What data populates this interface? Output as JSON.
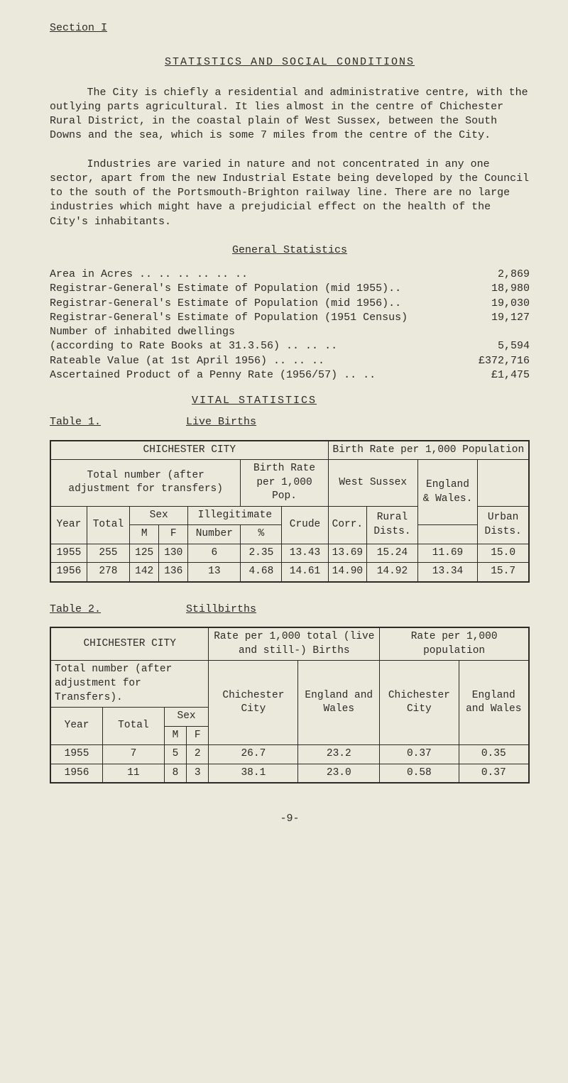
{
  "section_label": "Section I",
  "title": "STATISTICS  AND  SOCIAL  CONDITIONS",
  "para1": "The City is chiefly a residential and administrative centre, with the outlying parts agricultural.  It lies almost in the centre of Chichester Rural District, in the coastal plain of West Sussex, between the South Downs and the sea, which is some 7 miles from the centre of the City.",
  "para2": "Industries are varied in nature and not concentrated in any one sector, apart from the new Industrial Estate being developed by the Council to the south of the Portsmouth-Brighton railway line.  There are no large industries which might have a prejudicial effect on the health of the City's inhabitants.",
  "gen_stats_head": "General Statistics",
  "stats": [
    {
      "label": "Area in Acres   ..   ..   ..   ..   ..   ..",
      "value": "2,869"
    },
    {
      "label": "Registrar-General's Estimate of Population (mid 1955)..",
      "value": "18,980"
    },
    {
      "label": "Registrar-General's Estimate of Population (mid 1956)..",
      "value": "19,030"
    },
    {
      "label": "Registrar-General's Estimate of Population (1951 Census)",
      "value": "19,127"
    },
    {
      "label": "Number of inhabited dwellings",
      "value": ""
    },
    {
      "label": "(according to Rate Books at 31.3.56)  ..   ..   ..",
      "value": "5,594"
    },
    {
      "label": "Rateable Value (at 1st April 1956)    ..   ..   ..",
      "value": "£372,716"
    },
    {
      "label": "Ascertained Product of a Penny Rate (1956/57) ..   ..",
      "value": "£1,475"
    }
  ],
  "vital_head": "VITAL  STATISTICS",
  "table1_label": "Table 1.",
  "table1_title": "Live Births",
  "table1": {
    "h_city": "CHICHESTER  CITY",
    "h_birthrate": "Birth Rate per 1,000 Population",
    "h_total": "Total number (after adjustment for transfers)",
    "h_per1000": "Birth Rate per 1,000 Pop.",
    "h_westsussex": "West Sussex",
    "h_year": "Year",
    "h_totalcol": "Total",
    "h_sex": "Sex",
    "h_m": "M",
    "h_f": "F",
    "h_illeg": "Illegitimate",
    "h_number": "Number",
    "h_pct": "%",
    "h_crude": "Crude",
    "h_corr": "Corr.",
    "h_rural": "Rural Dists.",
    "h_urban": "Urban Dists.",
    "h_england": "England & Wales.",
    "rows": [
      {
        "year": "1955",
        "total": "255",
        "m": "125",
        "f": "130",
        "num": "6",
        "pct": "2.35",
        "crude": "13.43",
        "corr": "13.69",
        "rural": "15.24",
        "urban": "11.69",
        "eng": "15.0"
      },
      {
        "year": "1956",
        "total": "278",
        "m": "142",
        "f": "136",
        "num": "13",
        "pct": "4.68",
        "crude": "14.61",
        "corr": "14.90",
        "rural": "14.92",
        "urban": "13.34",
        "eng": "15.7"
      }
    ]
  },
  "table2_label": "Table 2.",
  "table2_title": "Stillbirths",
  "table2": {
    "h_city": "CHICHESTER  CITY",
    "h_rate1000_total": "Rate per 1,000 total (live and still-) Births",
    "h_rate1000_pop": "Rate per 1,000 population",
    "h_total": "Total number (after adjustment for Transfers).",
    "h_year": "Year",
    "h_totalcol": "Total",
    "h_sex": "Sex",
    "h_m": "M",
    "h_f": "F",
    "h_chi_city": "Chichester City",
    "h_eng_wales": "England and Wales",
    "rows": [
      {
        "year": "1955",
        "total": "7",
        "m": "5",
        "f": "2",
        "c1": "26.7",
        "c2": "23.2",
        "c3": "0.37",
        "c4": "0.35"
      },
      {
        "year": "1956",
        "total": "11",
        "m": "8",
        "f": "3",
        "c1": "38.1",
        "c2": "23.0",
        "c3": "0.58",
        "c4": "0.37"
      }
    ]
  },
  "footer": "-9-"
}
